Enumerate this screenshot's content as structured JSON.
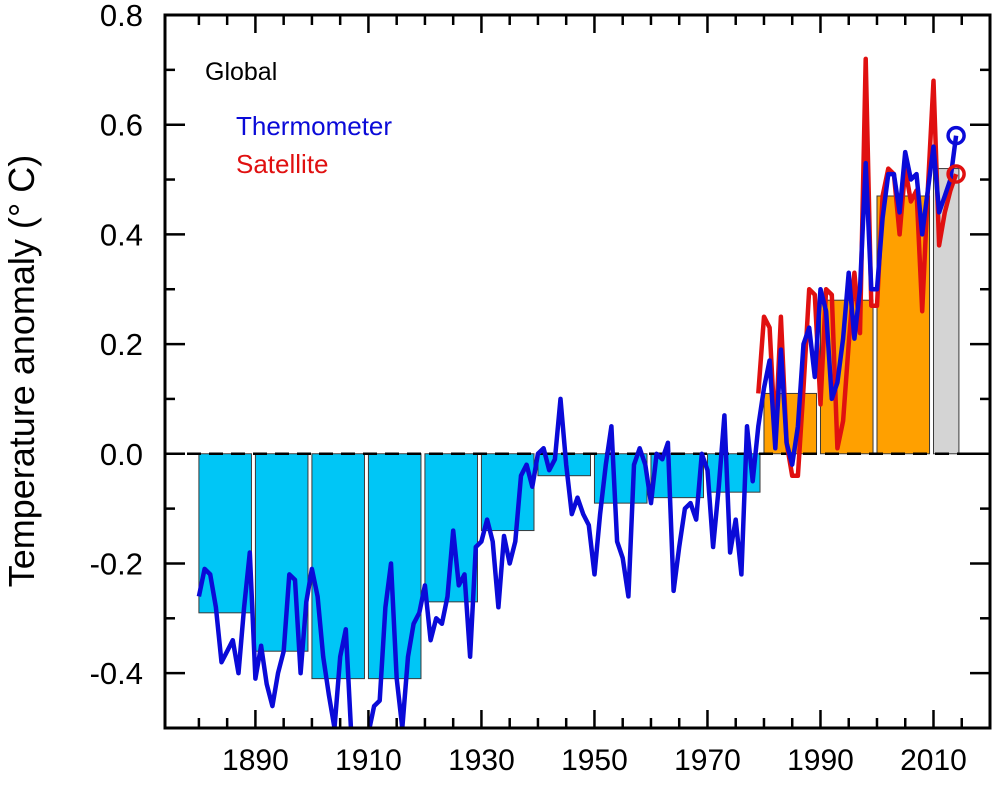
{
  "chart_data": {
    "type": "bar+line",
    "ylabel": "Temperature anomaly (° C)",
    "xlabel": "",
    "xlim": [
      1874,
      2020
    ],
    "ylim": [
      -0.5,
      0.8
    ],
    "x_ticks": [
      1890,
      1910,
      1930,
      1950,
      1970,
      1990,
      2010
    ],
    "y_ticks": [
      -0.4,
      -0.2,
      0.0,
      0.2,
      0.4,
      0.6,
      0.8
    ],
    "y_tick_labels": [
      "-0.4",
      "-0.2",
      "0.0",
      "0.2",
      "0.4",
      "0.6",
      "0.8"
    ],
    "legend": {
      "title": "Global",
      "placement": "top-left",
      "entries": [
        "Thermometer",
        "Satellite"
      ]
    },
    "colors": {
      "bar_negative": "#00c6f6",
      "bar_positive": "#ffa000",
      "bar_partial": "#d4d4d4",
      "thermometer": "#0a0ad8",
      "satellite": "#e01010",
      "zero_line": "#000000"
    },
    "decadal_bars": [
      {
        "decade": 1880,
        "value": -0.29,
        "kind": "negative"
      },
      {
        "decade": 1890,
        "value": -0.36,
        "kind": "negative"
      },
      {
        "decade": 1900,
        "value": -0.41,
        "kind": "negative"
      },
      {
        "decade": 1910,
        "value": -0.41,
        "kind": "negative"
      },
      {
        "decade": 1920,
        "value": -0.27,
        "kind": "negative"
      },
      {
        "decade": 1930,
        "value": -0.14,
        "kind": "negative"
      },
      {
        "decade": 1940,
        "value": -0.04,
        "kind": "negative"
      },
      {
        "decade": 1950,
        "value": -0.09,
        "kind": "negative"
      },
      {
        "decade": 1960,
        "value": -0.08,
        "kind": "negative"
      },
      {
        "decade": 1970,
        "value": -0.07,
        "kind": "negative"
      },
      {
        "decade": 1980,
        "value": 0.11,
        "kind": "positive"
      },
      {
        "decade": 1990,
        "value": 0.28,
        "kind": "positive"
      },
      {
        "decade": 2000,
        "value": 0.47,
        "kind": "positive"
      },
      {
        "decade": 2010,
        "value": 0.52,
        "kind": "partial"
      }
    ],
    "series": [
      {
        "name": "Thermometer",
        "start_year": 1880,
        "end_marker": "circle",
        "values": [
          -0.26,
          -0.21,
          -0.22,
          -0.28,
          -0.38,
          -0.36,
          -0.34,
          -0.4,
          -0.28,
          -0.18,
          -0.41,
          -0.35,
          -0.42,
          -0.46,
          -0.4,
          -0.36,
          -0.22,
          -0.23,
          -0.4,
          -0.27,
          -0.21,
          -0.26,
          -0.37,
          -0.44,
          -0.5,
          -0.37,
          -0.32,
          -0.52,
          -0.55,
          -0.53,
          -0.51,
          -0.46,
          -0.45,
          -0.28,
          -0.2,
          -0.41,
          -0.5,
          -0.37,
          -0.31,
          -0.29,
          -0.24,
          -0.34,
          -0.3,
          -0.31,
          -0.26,
          -0.14,
          -0.24,
          -0.22,
          -0.37,
          -0.17,
          -0.16,
          -0.12,
          -0.16,
          -0.28,
          -0.15,
          -0.2,
          -0.16,
          -0.04,
          -0.02,
          -0.06,
          0.0,
          0.01,
          -0.03,
          -0.01,
          0.1,
          -0.02,
          -0.11,
          -0.08,
          -0.11,
          -0.13,
          -0.22,
          -0.11,
          -0.02,
          0.05,
          -0.16,
          -0.19,
          -0.26,
          -0.02,
          0.01,
          -0.02,
          -0.09,
          0.0,
          -0.01,
          0.02,
          -0.25,
          -0.17,
          -0.1,
          -0.09,
          -0.12,
          0.0,
          -0.03,
          -0.17,
          -0.06,
          0.07,
          -0.18,
          -0.12,
          -0.22,
          0.05,
          -0.05,
          0.05,
          0.12,
          0.17,
          0.01,
          0.19,
          0.02,
          -0.02,
          0.05,
          0.2,
          0.23,
          0.14,
          0.3,
          0.26,
          0.1,
          0.13,
          0.21,
          0.33,
          0.21,
          0.3,
          0.53,
          0.3,
          0.3,
          0.43,
          0.51,
          0.51,
          0.44,
          0.55,
          0.5,
          0.51,
          0.4,
          0.48,
          0.56,
          0.44,
          0.47,
          0.5,
          0.58
        ]
      },
      {
        "name": "Satellite",
        "start_year": 1979,
        "end_marker": "circle",
        "values": [
          0.11,
          0.25,
          0.23,
          0.03,
          0.25,
          0.02,
          -0.04,
          -0.04,
          0.12,
          0.3,
          0.29,
          0.09,
          0.3,
          0.29,
          0.01,
          0.06,
          0.2,
          0.33,
          0.22,
          0.72,
          0.27,
          0.27,
          0.47,
          0.52,
          0.51,
          0.4,
          0.52,
          0.46,
          0.48,
          0.26,
          0.48,
          0.68,
          0.38,
          0.44,
          0.48,
          0.51
        ]
      }
    ]
  }
}
